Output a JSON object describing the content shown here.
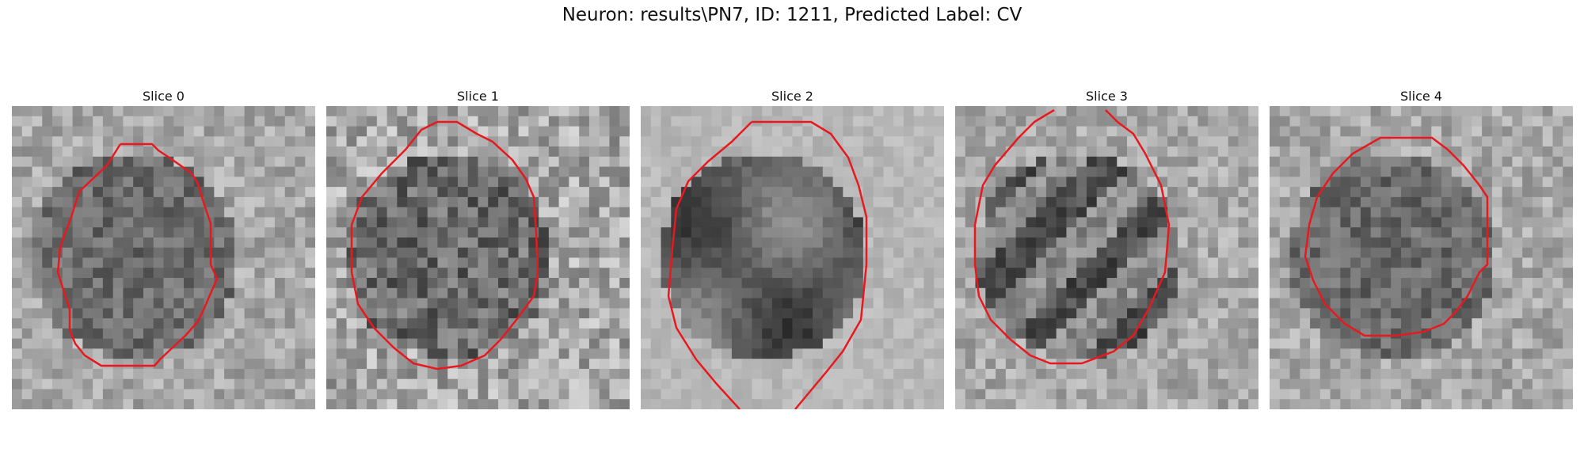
{
  "figure": {
    "title": "Neuron: results\\PN7, ID: 1211, Predicted Label: CV"
  },
  "panels": [
    {
      "title": "Slice 0"
    },
    {
      "title": "Slice 1"
    },
    {
      "title": "Slice 2"
    },
    {
      "title": "Slice 3"
    },
    {
      "title": "Slice 4"
    }
  ],
  "colors": {
    "contour": "#e8191e",
    "background": "#ffffff"
  }
}
